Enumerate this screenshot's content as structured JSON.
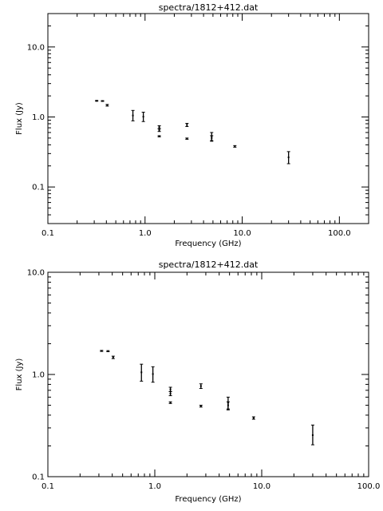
{
  "chart_data": [
    {
      "type": "scatter",
      "title": "spectra/1812+412.dat",
      "xlabel": "Frequency (GHz)",
      "ylabel": "Flux (Jy)",
      "x_scale": "log",
      "y_scale": "log",
      "xlim": [
        0.1,
        200
      ],
      "ylim": [
        0.03,
        30
      ],
      "x_ticks": [
        {
          "value": 0.1,
          "label": "0.1"
        },
        {
          "value": 1,
          "label": "1.0"
        },
        {
          "value": 10,
          "label": "10.0"
        },
        {
          "value": 100,
          "label": "100.0"
        }
      ],
      "y_ticks": [
        {
          "value": 0.1,
          "label": "0.1"
        },
        {
          "value": 1,
          "label": "1.0"
        },
        {
          "value": 10,
          "label": "10.0"
        }
      ],
      "points": [
        {
          "x": 0.318,
          "y": 1.7,
          "lo": 1.68,
          "hi": 1.72
        },
        {
          "x": 0.365,
          "y": 1.69,
          "lo": 1.67,
          "hi": 1.71
        },
        {
          "x": 0.408,
          "y": 1.47,
          "lo": 1.43,
          "hi": 1.51
        },
        {
          "x": 0.75,
          "y": 1.05,
          "lo": 0.88,
          "hi": 1.24
        },
        {
          "x": 0.96,
          "y": 1.01,
          "lo": 0.86,
          "hi": 1.17
        },
        {
          "x": 1.4,
          "y": 0.715,
          "lo": 0.68,
          "hi": 0.75
        },
        {
          "x": 1.4,
          "y": 0.65,
          "lo": 0.62,
          "hi": 0.68
        },
        {
          "x": 1.4,
          "y": 0.53,
          "lo": 0.52,
          "hi": 0.54
        },
        {
          "x": 2.7,
          "y": 0.77,
          "lo": 0.73,
          "hi": 0.81
        },
        {
          "x": 2.7,
          "y": 0.49,
          "lo": 0.48,
          "hi": 0.5
        },
        {
          "x": 4.85,
          "y": 0.53,
          "lo": 0.45,
          "hi": 0.6
        },
        {
          "x": 4.85,
          "y": 0.5,
          "lo": 0.46,
          "hi": 0.54
        },
        {
          "x": 8.4,
          "y": 0.38,
          "lo": 0.37,
          "hi": 0.39
        },
        {
          "x": 30.0,
          "y": 0.265,
          "lo": 0.215,
          "hi": 0.32
        }
      ]
    },
    {
      "type": "scatter",
      "title": "spectra/1812+412.dat",
      "xlabel": "Frequency (GHz)",
      "ylabel": "Flux (Jy)",
      "x_scale": "log",
      "y_scale": "log",
      "xlim": [
        0.1,
        100
      ],
      "ylim": [
        0.1,
        10
      ],
      "x_ticks": [
        {
          "value": 0.1,
          "label": "0.1"
        },
        {
          "value": 1,
          "label": "1.0"
        },
        {
          "value": 10,
          "label": "10.0"
        },
        {
          "value": 100,
          "label": "100.0"
        }
      ],
      "y_ticks": [
        {
          "value": 0.1,
          "label": "0.1"
        },
        {
          "value": 1,
          "label": "1.0"
        },
        {
          "value": 10,
          "label": "10.0"
        }
      ],
      "points": [
        {
          "x": 0.318,
          "y": 1.7,
          "lo": 1.68,
          "hi": 1.72
        },
        {
          "x": 0.365,
          "y": 1.69,
          "lo": 1.67,
          "hi": 1.71
        },
        {
          "x": 0.408,
          "y": 1.47,
          "lo": 1.43,
          "hi": 1.51
        },
        {
          "x": 0.75,
          "y": 1.05,
          "lo": 0.86,
          "hi": 1.26
        },
        {
          "x": 0.96,
          "y": 1.01,
          "lo": 0.84,
          "hi": 1.19
        },
        {
          "x": 1.4,
          "y": 0.715,
          "lo": 0.68,
          "hi": 0.75
        },
        {
          "x": 1.4,
          "y": 0.65,
          "lo": 0.62,
          "hi": 0.68
        },
        {
          "x": 1.4,
          "y": 0.53,
          "lo": 0.52,
          "hi": 0.54
        },
        {
          "x": 2.7,
          "y": 0.77,
          "lo": 0.73,
          "hi": 0.81
        },
        {
          "x": 2.7,
          "y": 0.49,
          "lo": 0.48,
          "hi": 0.5
        },
        {
          "x": 4.85,
          "y": 0.53,
          "lo": 0.45,
          "hi": 0.6
        },
        {
          "x": 4.85,
          "y": 0.5,
          "lo": 0.46,
          "hi": 0.54
        },
        {
          "x": 8.4,
          "y": 0.375,
          "lo": 0.365,
          "hi": 0.385
        },
        {
          "x": 30.0,
          "y": 0.255,
          "lo": 0.205,
          "hi": 0.32
        }
      ]
    }
  ]
}
